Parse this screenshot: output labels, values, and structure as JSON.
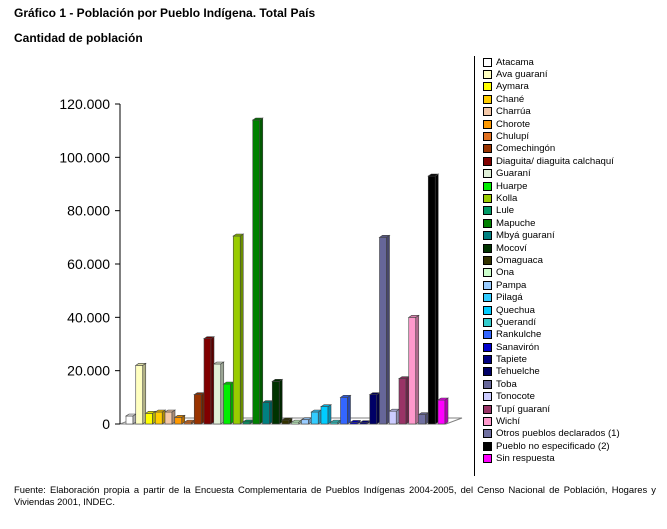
{
  "title": "Gráfico 1 - Población por Pueblo Indígena. Total País",
  "subtitle": "Cantidad de población",
  "source": "Fuente: Elaboración propia a partir de la Encuesta Complementaria de Pueblos Indígenas 2004-2005, del Censo Nacional de Población, Hogares y Viviendas 2001, INDEC.",
  "chart_data": {
    "type": "bar",
    "title": "Gráfico 1 - Población por Pueblo Indígena. Total País",
    "subtitle": "Cantidad de población",
    "ylim": [
      0,
      120000
    ],
    "yticks": [
      0,
      20000,
      40000,
      60000,
      80000,
      100000,
      120000
    ],
    "ytick_labels": [
      "0",
      "20.000",
      "40.000",
      "60.000",
      "80.000",
      "100.000",
      "120.000"
    ],
    "grid": false,
    "legend_position": "right",
    "series": [
      {
        "name": "Atacama",
        "value": 3000,
        "color": "#ffffff"
      },
      {
        "name": "Ava guaraní",
        "value": 22000,
        "color": "#ffffc0"
      },
      {
        "name": "Aymara",
        "value": 4000,
        "color": "#ffff00"
      },
      {
        "name": "Chané",
        "value": 4500,
        "color": "#ffcc00"
      },
      {
        "name": "Charrúa",
        "value": 4500,
        "color": "#f4c8a8"
      },
      {
        "name": "Chorote",
        "value": 2500,
        "color": "#ff9900"
      },
      {
        "name": "Chulupí",
        "value": 700,
        "color": "#e07020"
      },
      {
        "name": "Comechingón",
        "value": 11000,
        "color": "#993300"
      },
      {
        "name": "Diaguita/ diaguita calchaquí",
        "value": 32000,
        "color": "#800000"
      },
      {
        "name": "Guaraní",
        "value": 22500,
        "color": "#e0f0d8"
      },
      {
        "name": "Huarpe",
        "value": 15000,
        "color": "#00ee00"
      },
      {
        "name": "Kolla",
        "value": 70500,
        "color": "#99cc00"
      },
      {
        "name": "Lule",
        "value": 800,
        "color": "#009966"
      },
      {
        "name": "Mapuche",
        "value": 114000,
        "color": "#008000"
      },
      {
        "name": "Mbyá guaraní",
        "value": 8000,
        "color": "#008080"
      },
      {
        "name": "Mocoví",
        "value": 16000,
        "color": "#003300"
      },
      {
        "name": "Omaguaca",
        "value": 1500,
        "color": "#333300"
      },
      {
        "name": "Ona",
        "value": 700,
        "color": "#ccffcc"
      },
      {
        "name": "Pampa",
        "value": 1600,
        "color": "#99ccff"
      },
      {
        "name": "Pilagá",
        "value": 4500,
        "color": "#33ccff"
      },
      {
        "name": "Quechua",
        "value": 6500,
        "color": "#00ccff"
      },
      {
        "name": "Querandí",
        "value": 700,
        "color": "#33cccc"
      },
      {
        "name": "Rankulche",
        "value": 10000,
        "color": "#3366ff"
      },
      {
        "name": "Sanavirón",
        "value": 600,
        "color": "#0000cc"
      },
      {
        "name": "Tapiete",
        "value": 500,
        "color": "#000080"
      },
      {
        "name": "Tehuelche",
        "value": 11000,
        "color": "#000066"
      },
      {
        "name": "Toba",
        "value": 70000,
        "color": "#666699"
      },
      {
        "name": "Tonocote",
        "value": 4800,
        "color": "#ccccff"
      },
      {
        "name": "Tupí guaraní",
        "value": 17000,
        "color": "#993366"
      },
      {
        "name": "Wichí",
        "value": 40000,
        "color": "#ff99cc"
      },
      {
        "name": "Otros pueblos declarados (1)",
        "value": 3500,
        "color": "#7070a0"
      },
      {
        "name": "Pueblo no especificado (2)",
        "value": 93000,
        "color": "#000000"
      },
      {
        "name": "Sin respuesta",
        "value": 9000,
        "color": "#ff00ff"
      }
    ]
  }
}
